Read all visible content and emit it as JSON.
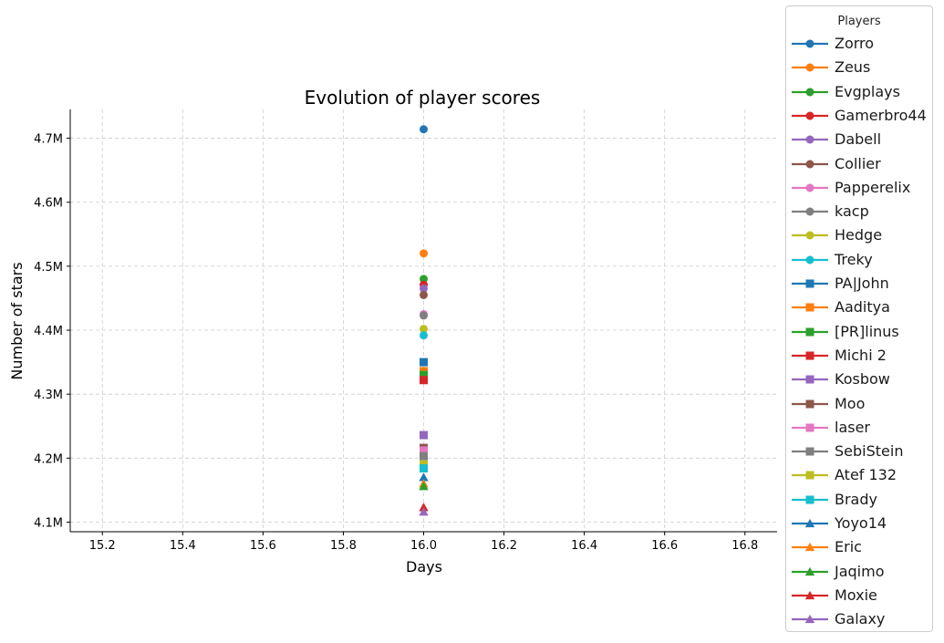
{
  "chart_data": {
    "type": "scatter",
    "title": "Evolution of player scores",
    "xlabel": "Days",
    "ylabel": "Number of stars",
    "xlim": [
      15.12,
      16.88
    ],
    "ylim": [
      4085000,
      4745000
    ],
    "xticks": [
      15.2,
      15.4,
      15.6,
      15.8,
      16.0,
      16.2,
      16.4,
      16.6,
      16.8
    ],
    "xtick_labels": [
      "15.2",
      "15.4",
      "15.6",
      "15.8",
      "16.0",
      "16.2",
      "16.4",
      "16.6",
      "16.8"
    ],
    "yticks": [
      4100000,
      4200000,
      4300000,
      4400000,
      4500000,
      4600000,
      4700000
    ],
    "ytick_labels": [
      "4.1M",
      "4.2M",
      "4.3M",
      "4.4M",
      "4.5M",
      "4.6M",
      "4.7M"
    ],
    "grid": true,
    "grid_style": "dashed",
    "legend_title": "Players",
    "legend_position": "outside-right",
    "series": [
      {
        "name": "Zorro",
        "marker": "circle",
        "color": "#1f77b4",
        "x": [
          16.0
        ],
        "y": [
          4714000
        ]
      },
      {
        "name": "Zeus",
        "marker": "circle",
        "color": "#ff7f0e",
        "x": [
          16.0
        ],
        "y": [
          4520000
        ]
      },
      {
        "name": "Evgplays",
        "marker": "circle",
        "color": "#2ca02c",
        "x": [
          16.0
        ],
        "y": [
          4480000
        ]
      },
      {
        "name": "Gamerbro44",
        "marker": "circle",
        "color": "#d62728",
        "x": [
          16.0
        ],
        "y": [
          4471000
        ]
      },
      {
        "name": "Dabell",
        "marker": "circle",
        "color": "#9467bd",
        "x": [
          16.0
        ],
        "y": [
          4465000
        ]
      },
      {
        "name": "Collier",
        "marker": "circle",
        "color": "#8c564b",
        "x": [
          16.0
        ],
        "y": [
          4455000
        ]
      },
      {
        "name": "Papperelix",
        "marker": "circle",
        "color": "#e377c2",
        "x": [
          16.0
        ],
        "y": [
          4425000
        ]
      },
      {
        "name": "kacp",
        "marker": "circle",
        "color": "#7f7f7f",
        "x": [
          16.0
        ],
        "y": [
          4423000
        ]
      },
      {
        "name": "Hedge",
        "marker": "circle",
        "color": "#bcbd22",
        "x": [
          16.0
        ],
        "y": [
          4402000
        ]
      },
      {
        "name": "Treky",
        "marker": "circle",
        "color": "#17becf",
        "x": [
          16.0
        ],
        "y": [
          4392000
        ]
      },
      {
        "name": "PA|John",
        "marker": "square",
        "color": "#1f77b4",
        "x": [
          16.0
        ],
        "y": [
          4350000
        ]
      },
      {
        "name": "Aaditya",
        "marker": "square",
        "color": "#ff7f0e",
        "x": [
          16.0
        ],
        "y": [
          4336000
        ]
      },
      {
        "name": "[PR]linus",
        "marker": "square",
        "color": "#2ca02c",
        "x": [
          16.0
        ],
        "y": [
          4330000
        ]
      },
      {
        "name": "Michi 2",
        "marker": "square",
        "color": "#d62728",
        "x": [
          16.0
        ],
        "y": [
          4322000
        ]
      },
      {
        "name": "Kosbow",
        "marker": "square",
        "color": "#9467bd",
        "x": [
          16.0
        ],
        "y": [
          4236000
        ]
      },
      {
        "name": "Moo",
        "marker": "square",
        "color": "#8c564b",
        "x": [
          16.0
        ],
        "y": [
          4216000
        ]
      },
      {
        "name": "laser",
        "marker": "square",
        "color": "#e377c2",
        "x": [
          16.0
        ],
        "y": [
          4212000
        ]
      },
      {
        "name": "SebiStein",
        "marker": "square",
        "color": "#7f7f7f",
        "x": [
          16.0
        ],
        "y": [
          4203000
        ]
      },
      {
        "name": "Atef 132",
        "marker": "square",
        "color": "#bcbd22",
        "x": [
          16.0
        ],
        "y": [
          4190000
        ]
      },
      {
        "name": "Brady",
        "marker": "square",
        "color": "#17becf",
        "x": [
          16.0
        ],
        "y": [
          4184000
        ]
      },
      {
        "name": "Yoyo14",
        "marker": "triangle",
        "color": "#1f77b4",
        "x": [
          16.0
        ],
        "y": [
          4170000
        ]
      },
      {
        "name": "Eric",
        "marker": "triangle",
        "color": "#ff7f0e",
        "x": [
          16.0
        ],
        "y": [
          4160000
        ]
      },
      {
        "name": "Jaqimo",
        "marker": "triangle",
        "color": "#2ca02c",
        "x": [
          16.0
        ],
        "y": [
          4156000
        ]
      },
      {
        "name": "Moxie",
        "marker": "triangle",
        "color": "#d62728",
        "x": [
          16.0
        ],
        "y": [
          4123000
        ]
      },
      {
        "name": "Galaxy",
        "marker": "triangle",
        "color": "#9467bd",
        "x": [
          16.0
        ],
        "y": [
          4116000
        ]
      }
    ]
  }
}
